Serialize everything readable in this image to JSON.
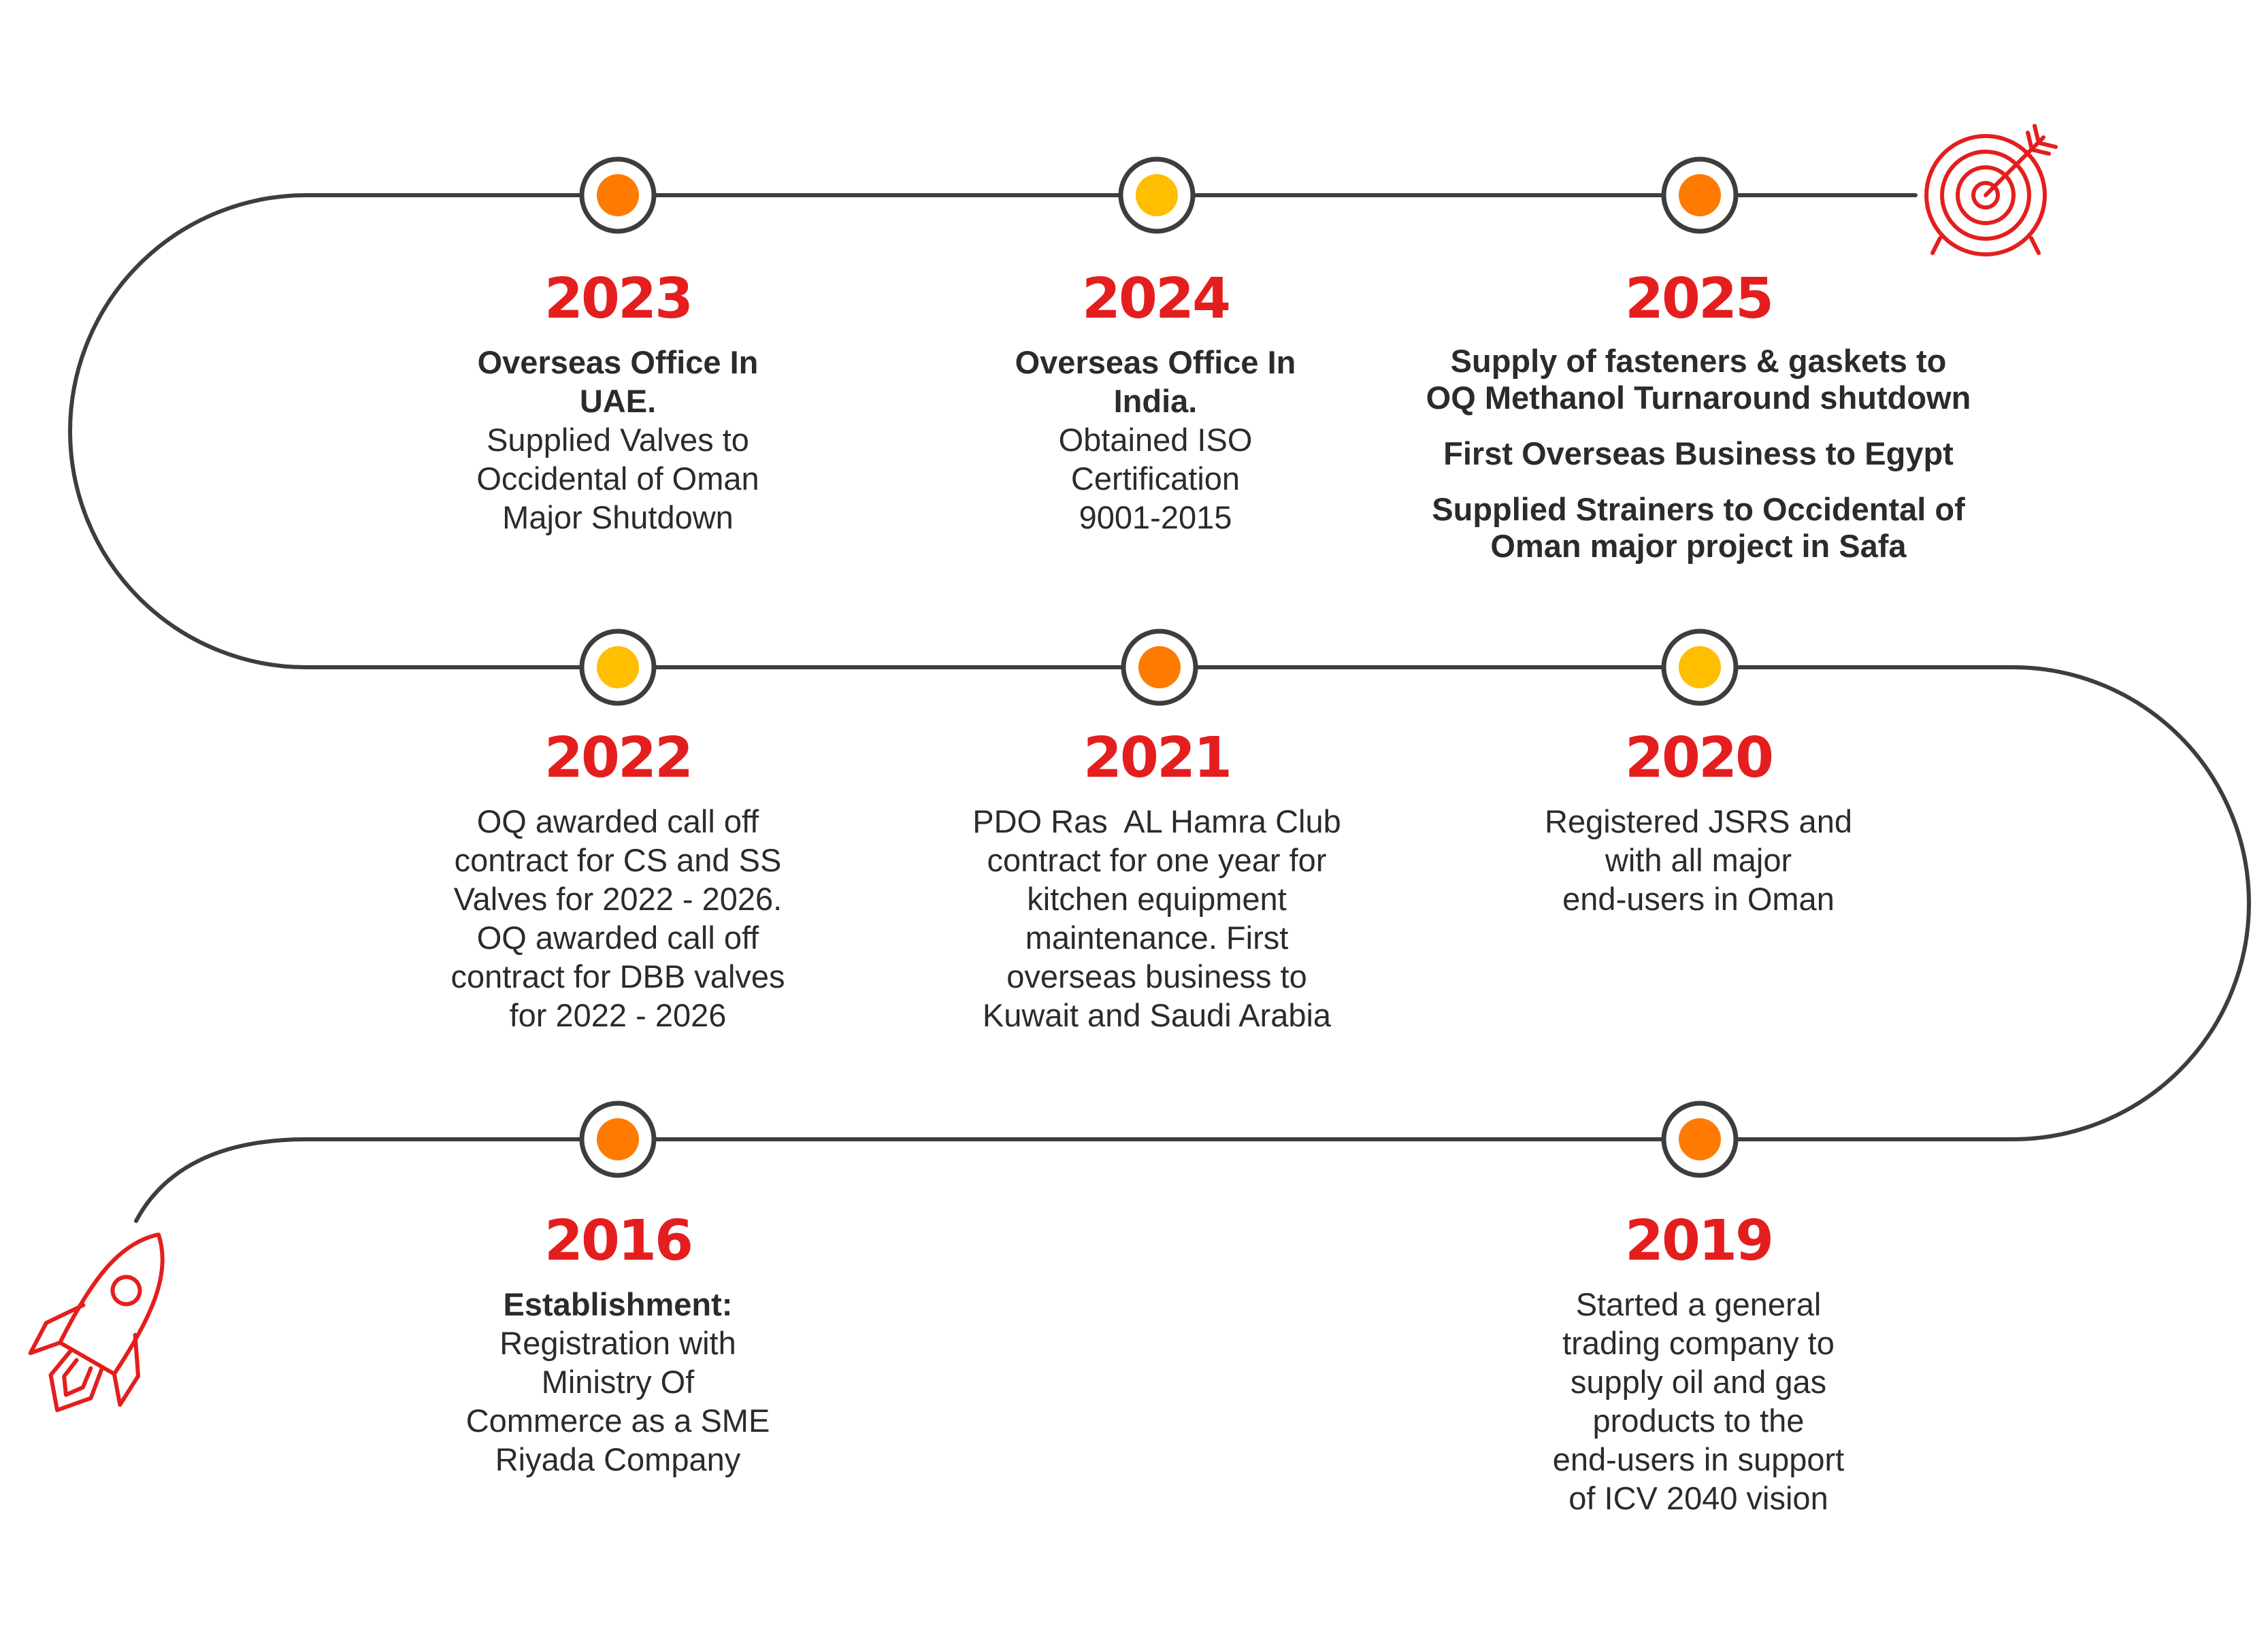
{
  "colors": {
    "path": "#3d3d3d",
    "year_red": "#e41e1e",
    "dot_orange": "#ff7a00",
    "dot_yellow": "#ffbe00",
    "icon_red": "#e41e1e"
  },
  "icons": {
    "start": "rocket-icon",
    "end": "target-arrow-icon"
  },
  "milestones": [
    {
      "key": "m2023",
      "year": "2023",
      "dot": "orange",
      "lines": [
        {
          "text": "Overseas Office In",
          "bold": true
        },
        {
          "text": "UAE.",
          "bold": true
        },
        {
          "text": "Supplied Valves to"
        },
        {
          "text": "Occidental of Oman"
        },
        {
          "text": "Major Shutdown"
        }
      ]
    },
    {
      "key": "m2024",
      "year": "2024",
      "dot": "yellow",
      "lines": [
        {
          "text": "Overseas Office In",
          "bold": true
        },
        {
          "text": "India.",
          "bold": true
        },
        {
          "text": "Obtained ISO"
        },
        {
          "text": "Certification"
        },
        {
          "text": "9001-2015"
        }
      ]
    },
    {
      "key": "m2025",
      "year": "2025",
      "dot": "orange",
      "lines": [
        {
          "text": "Supply of fasteners & gaskets to"
        },
        {
          "text": "OQ Methanol Turnaround shutdown"
        },
        {
          "text": "First Overseas Business to Egypt",
          "gap": true
        },
        {
          "text": "Supplied Strainers to Occidental of",
          "gap": true
        },
        {
          "text": "Oman major project in Safa"
        }
      ]
    },
    {
      "key": "m2022",
      "year": "2022",
      "dot": "yellow",
      "lines": [
        {
          "text": "OQ awarded call off"
        },
        {
          "text": "contract for CS and SS"
        },
        {
          "text": "Valves for 2022 - 2026."
        },
        {
          "text": "OQ awarded call off"
        },
        {
          "text": "contract for DBB valves"
        },
        {
          "text": "for 2022 - 2026"
        }
      ]
    },
    {
      "key": "m2021",
      "year": "2021",
      "dot": "orange",
      "lines": [
        {
          "text": "PDO Ras  AL Hamra Club"
        },
        {
          "text": "contract for one year for"
        },
        {
          "text": "kitchen equipment"
        },
        {
          "text": "maintenance. First"
        },
        {
          "text": "overseas business to"
        },
        {
          "text": "Kuwait and Saudi Arabia"
        }
      ]
    },
    {
      "key": "m2020",
      "year": "2020",
      "dot": "yellow",
      "lines": [
        {
          "text": "Registered JSRS and"
        },
        {
          "text": "with all major"
        },
        {
          "text": "end-users in Oman"
        }
      ]
    },
    {
      "key": "m2016",
      "year": "2016",
      "dot": "orange",
      "lines": [
        {
          "text": "Establishment:",
          "bold": true
        },
        {
          "text": "Registration with"
        },
        {
          "text": "Ministry Of"
        },
        {
          "text": "Commerce as a SME"
        },
        {
          "text": "Riyada Company"
        }
      ]
    },
    {
      "key": "m2019",
      "year": "2019",
      "dot": "orange",
      "lines": [
        {
          "text": "Started a general"
        },
        {
          "text": "trading company to"
        },
        {
          "text": "supply oil and gas"
        },
        {
          "text": "products to the"
        },
        {
          "text": "end-users in support"
        },
        {
          "text": "of ICV 2040 vision"
        }
      ]
    }
  ]
}
